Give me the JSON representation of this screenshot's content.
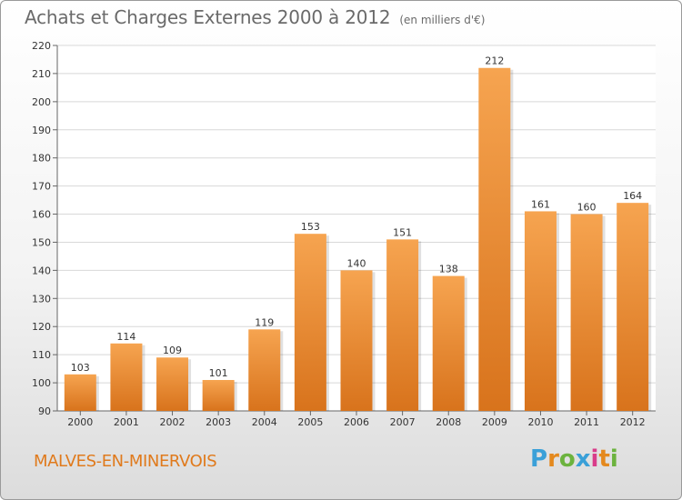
{
  "title": "Achats et Charges Externes 2000 à 2012",
  "subtitle": "(en milliers d'€)",
  "town": "MALVES-EN-MINERVOIS",
  "logo": {
    "letters": [
      "P",
      "r",
      "o",
      "x",
      "i",
      "t",
      "i"
    ],
    "colors": [
      "#3aa0d8",
      "#e4891e",
      "#6cb33e",
      "#3aa0d8",
      "#d93c8a",
      "#e4891e",
      "#6cb33e"
    ]
  },
  "colors": {
    "bar_light": "#f6a450",
    "bar_dark": "#d8731c",
    "grid": "#d8d8d8",
    "axis_text": "#333333"
  },
  "chart_data": {
    "type": "bar",
    "categories": [
      "2000",
      "2001",
      "2002",
      "2003",
      "2004",
      "2005",
      "2006",
      "2007",
      "2008",
      "2009",
      "2010",
      "2011",
      "2012"
    ],
    "values": [
      103,
      114,
      109,
      101,
      119,
      153,
      140,
      151,
      138,
      212,
      161,
      160,
      164
    ],
    "ylim": [
      90,
      220
    ],
    "yticks": [
      90,
      100,
      110,
      120,
      130,
      140,
      150,
      160,
      170,
      180,
      190,
      200,
      210,
      220
    ],
    "grid": true,
    "xlabel": "",
    "ylabel": ""
  }
}
